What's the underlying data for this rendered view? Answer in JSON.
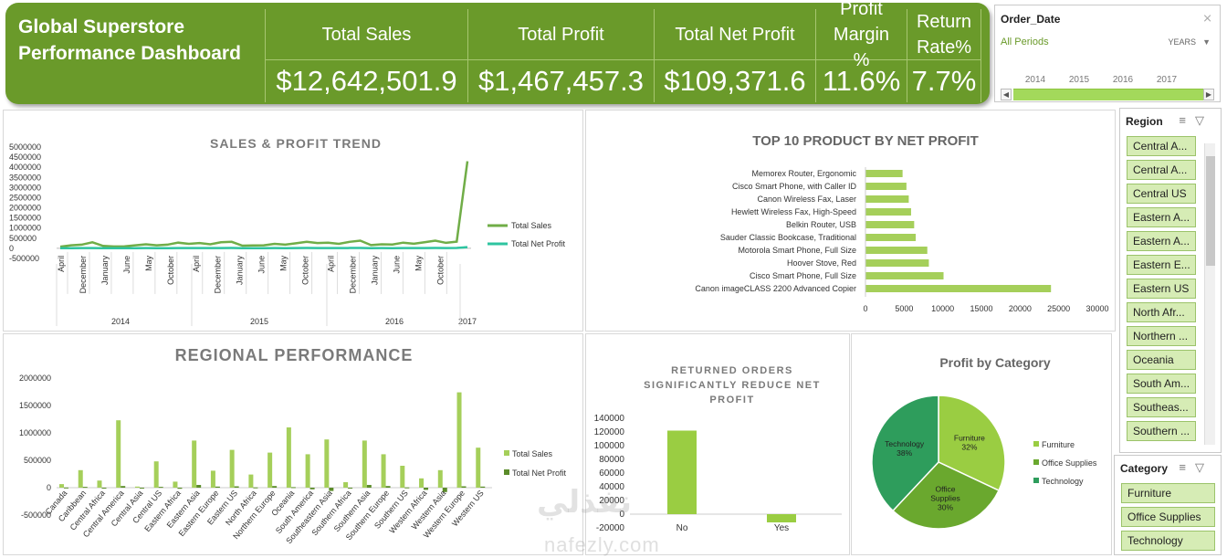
{
  "banner": {
    "title": "Global Superstore Performance Dashboard",
    "kpis": [
      {
        "label": "Total Sales",
        "value": "$12,642,501.9"
      },
      {
        "label": "Total Profit",
        "value": "$1,467,457.3"
      },
      {
        "label": "Total Net Profit",
        "value": "$109,371.6"
      },
      {
        "label": "Profit Margin %",
        "value": "11.6%"
      },
      {
        "label": "Return Rate%",
        "value": "7.7%"
      }
    ]
  },
  "date_slicer": {
    "title": "Order_Date",
    "selection": "All Periods",
    "level": "YEARS",
    "years": [
      "2014",
      "2015",
      "2016",
      "2017"
    ]
  },
  "region_slicer": {
    "title": "Region",
    "items": [
      "Central A...",
      "Central A...",
      "Central US",
      "Eastern A...",
      "Eastern A...",
      "Eastern E...",
      "Eastern US",
      "North Afr...",
      "Northern ...",
      "Oceania",
      "South Am...",
      "Southeas...",
      "Southern ..."
    ]
  },
  "category_slicer": {
    "title": "Category",
    "items": [
      "Furniture",
      "Office Supplies",
      "Technology"
    ]
  },
  "colors": {
    "accent": "#6a9a2a",
    "sales": "#70ad47",
    "net_profit": "#2ec4a0",
    "bar_light": "#a5cf5a",
    "bar_dark": "#5b8c2a"
  },
  "chart_data": [
    {
      "id": "sales_profit_trend",
      "type": "line",
      "title": "SALES & PROFIT TREND",
      "yticks": [
        "5000000",
        "4500000",
        "4000000",
        "3500000",
        "3000000",
        "2500000",
        "2000000",
        "1500000",
        "1000000",
        "500000",
        "0",
        "-500000"
      ],
      "ylim": [
        -500000,
        5000000
      ],
      "month_labels": [
        "April",
        "December",
        "January",
        "June",
        "May",
        "October",
        "April",
        "December",
        "January",
        "June",
        "May",
        "October",
        "April",
        "December",
        "January",
        "June",
        "May",
        "October"
      ],
      "year_labels": [
        "2014",
        "2015",
        "2016",
        "2017"
      ],
      "series": [
        {
          "name": "Total Sales",
          "values": [
            80000,
            150000,
            180000,
            300000,
            120000,
            90000,
            100000,
            150000,
            200000,
            150000,
            180000,
            280000,
            220000,
            260000,
            200000,
            300000,
            320000,
            130000,
            140000,
            150000,
            220000,
            180000,
            250000,
            320000,
            260000,
            280000,
            220000,
            320000,
            380000,
            160000,
            200000,
            190000,
            280000,
            230000,
            300000,
            380000,
            270000,
            330000,
            4300000
          ]
        },
        {
          "name": "Total Net Profit",
          "values": [
            5000,
            8000,
            10000,
            15000,
            6000,
            5000,
            6000,
            8000,
            10000,
            8000,
            9000,
            14000,
            11000,
            13000,
            10000,
            15000,
            16000,
            7000,
            7000,
            8000,
            11000,
            9000,
            12000,
            16000,
            13000,
            14000,
            11000,
            16000,
            19000,
            8000,
            10000,
            9000,
            14000,
            12000,
            15000,
            19000,
            13000,
            16000,
            60000
          ]
        }
      ]
    },
    {
      "id": "top10_products",
      "type": "bar",
      "title": "TOP 10 PRODUCT BY NET PROFIT",
      "categories": [
        "Memorex Router, Ergonomic",
        "Cisco Smart Phone, with Caller ID",
        "Canon Wireless Fax, Laser",
        "Hewlett Wireless Fax, High-Speed",
        "Belkin Router, USB",
        "Sauder Classic Bookcase, Traditional",
        "Motorola Smart Phone, Full Size",
        "Hoover Stove, Red",
        "Cisco Smart Phone, Full Size",
        "Canon imageCLASS 2200 Advanced Copier"
      ],
      "values": [
        4800,
        5300,
        5600,
        5900,
        6300,
        6500,
        8000,
        8200,
        10100,
        24000
      ],
      "xticks": [
        "0",
        "5000",
        "10000",
        "15000",
        "20000",
        "25000",
        "30000"
      ],
      "xlim": [
        0,
        30000
      ]
    },
    {
      "id": "regional_performance",
      "type": "bar",
      "title": "REGIONAL PERFORMANCE",
      "categories": [
        "Canada",
        "Caribbean",
        "Central Africa",
        "Central America",
        "Central Asia",
        "Central US",
        "Eastern Africa",
        "Eastern Asia",
        "Eastern Europe",
        "Eastern US",
        "North Africa",
        "Northern Europe",
        "Oceania",
        "South America",
        "Southeastern Asia",
        "Southern Africa",
        "Southern Asia",
        "Southern Europe",
        "Southern US",
        "Western Africa",
        "Western Asia",
        "Western Europe",
        "Western US"
      ],
      "yticks": [
        "2000000",
        "1500000",
        "1000000",
        "500000",
        "0",
        "-500000"
      ],
      "ylim": [
        -500000,
        2000000
      ],
      "series": [
        {
          "name": "Total Sales",
          "values": [
            65000,
            320000,
            130000,
            1230000,
            20000,
            480000,
            110000,
            860000,
            310000,
            690000,
            240000,
            640000,
            1100000,
            610000,
            880000,
            100000,
            860000,
            610000,
            400000,
            170000,
            320000,
            1740000,
            730000
          ]
        },
        {
          "name": "Total Net Profit",
          "values": [
            3000,
            15000,
            -10000,
            30000,
            -5000,
            15000,
            -20000,
            50000,
            20000,
            25000,
            5000,
            30000,
            10000,
            -30000,
            -60000,
            -5000,
            50000,
            30000,
            5000,
            -40000,
            -80000,
            25000,
            20000
          ]
        }
      ]
    },
    {
      "id": "returned_orders",
      "type": "bar",
      "title": "RETURNED ORDERS SIGNIFICANTLY REDUCE NET PROFIT",
      "categories": [
        "No",
        "Yes"
      ],
      "values": [
        122000,
        -12000
      ],
      "yticks": [
        "140000",
        "120000",
        "100000",
        "80000",
        "60000",
        "40000",
        "20000",
        "0",
        "-20000"
      ],
      "ylim": [
        -20000,
        140000
      ]
    },
    {
      "id": "profit_by_category",
      "type": "pie",
      "title": "Profit by Category",
      "categories": [
        "Furniture",
        "Office Supplies",
        "Technology"
      ],
      "labels": [
        "Furniture\n32%",
        "Office Supplies\n30%",
        "Technology\n38%"
      ],
      "values": [
        32,
        30,
        38
      ]
    }
  ],
  "watermark": {
    "arabic": "نفذلي",
    "latin": "nafezly.com"
  }
}
